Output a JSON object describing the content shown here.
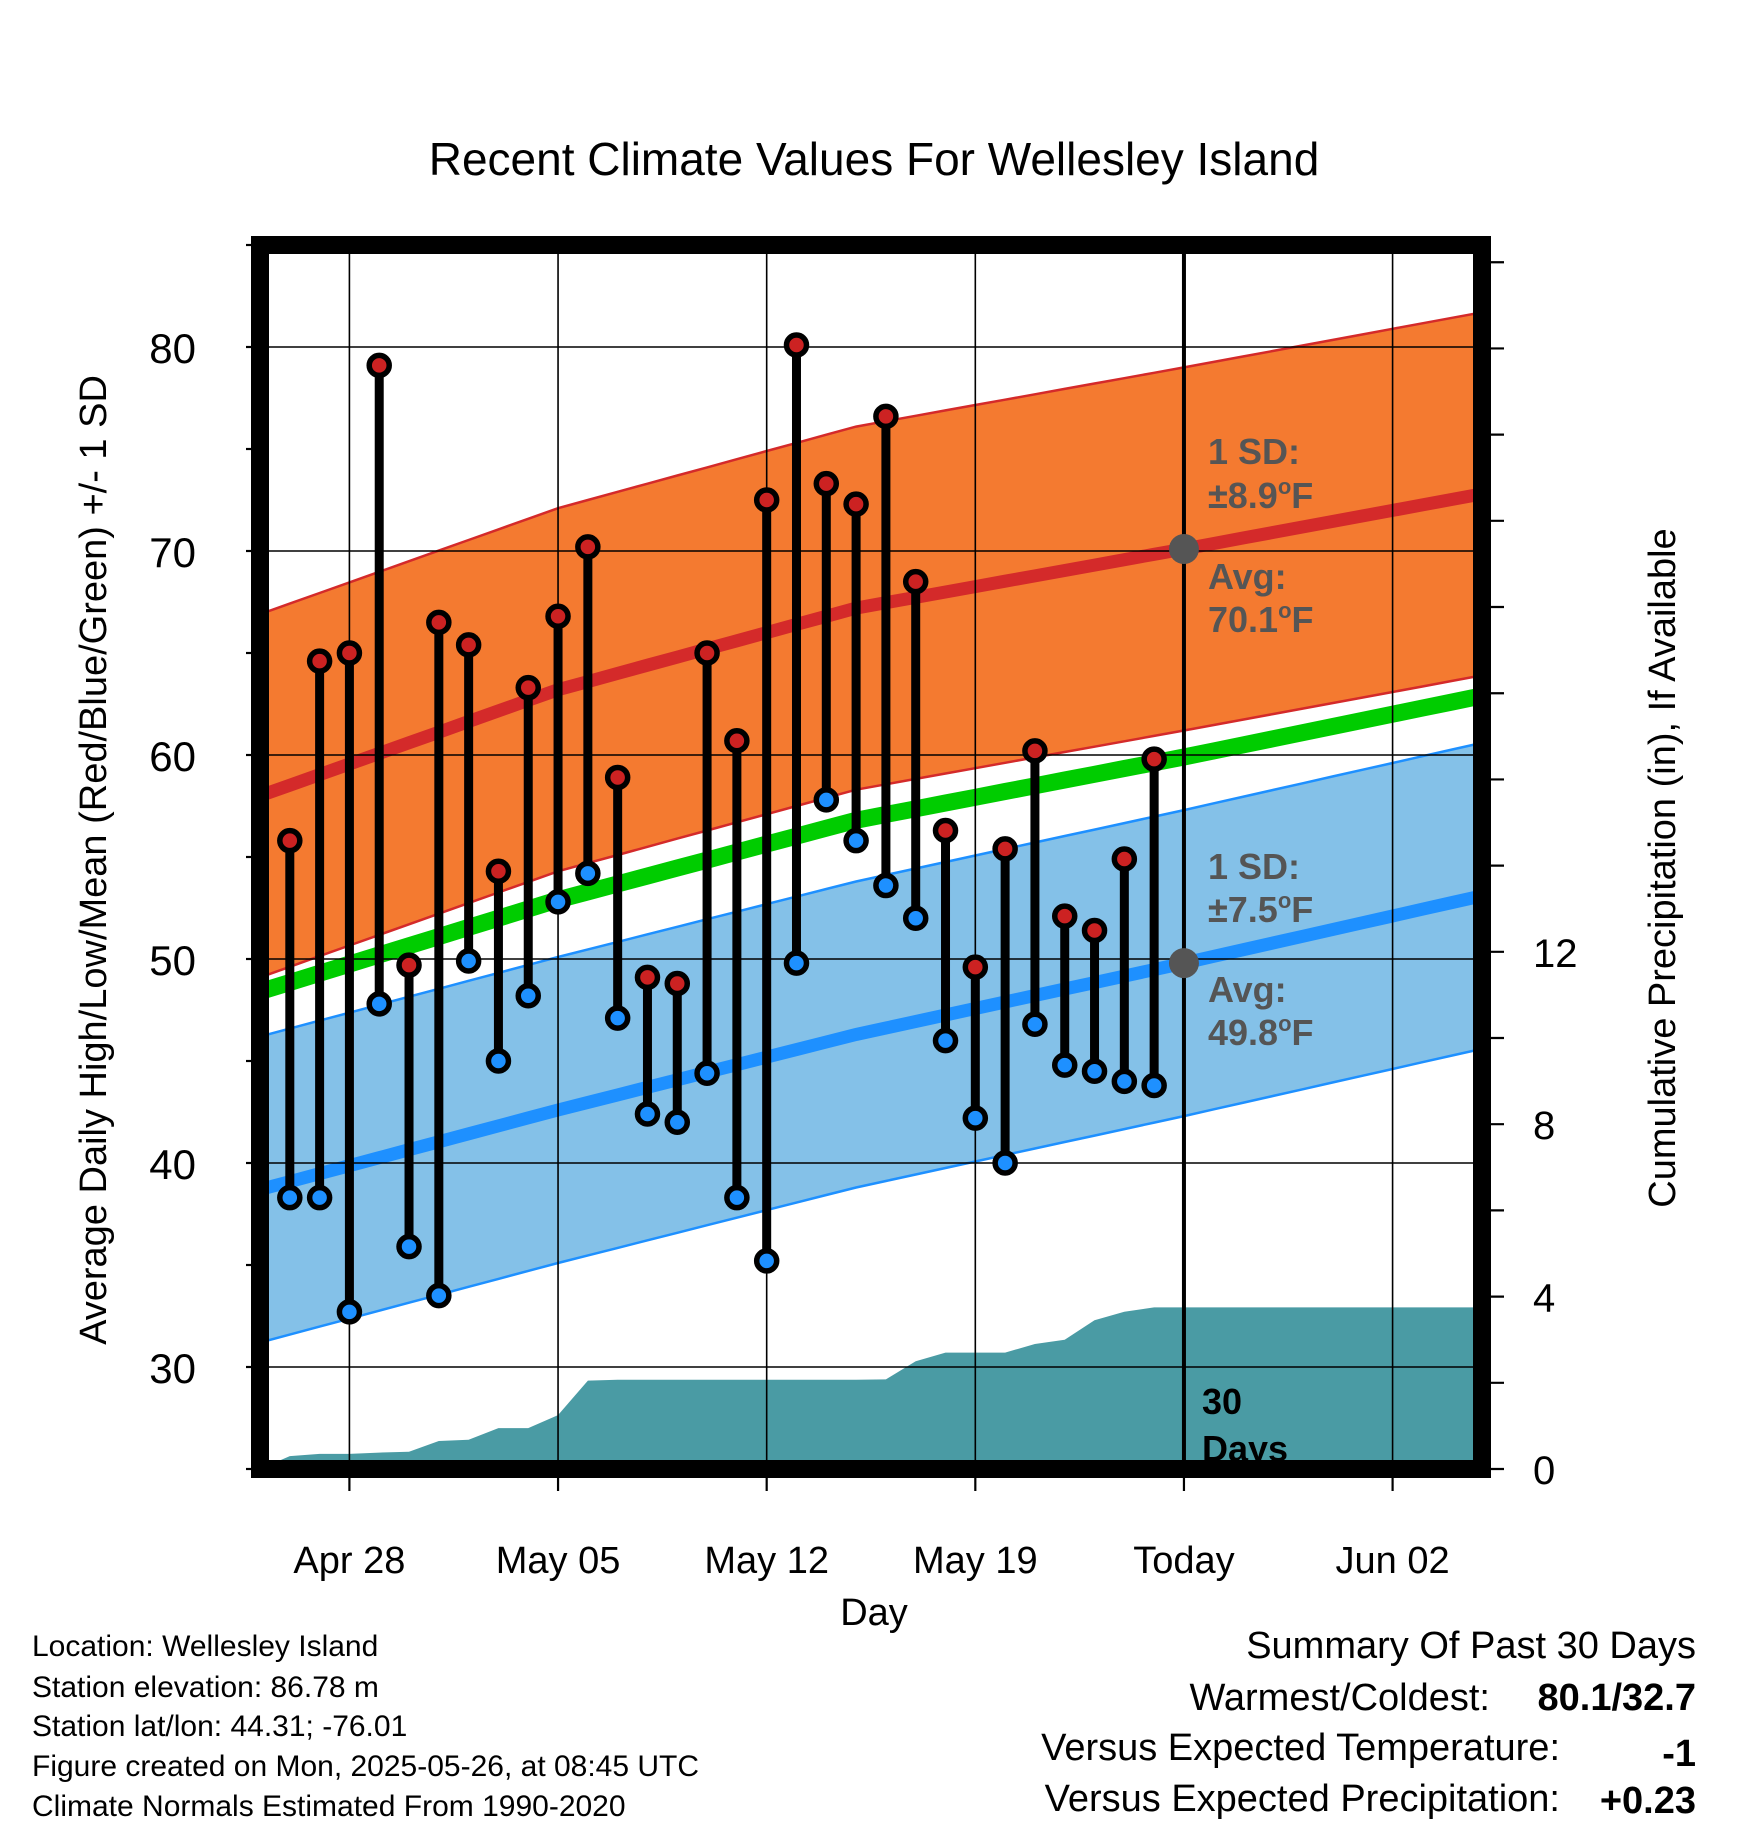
{
  "chart_data": {
    "type": "line",
    "title": "Recent Climate Values For Wellesley Island",
    "xlabel": "Day",
    "ylabel": "Average Daily High/Low/Mean (Red/Blue/Green) +/- 1 SD",
    "y2label": "Cumulative Precipitation (in), If Available",
    "ylim": [
      25,
      85
    ],
    "y2lim": [
      0,
      28.4
    ],
    "x_start_date": "2025-04-25",
    "x_end_date": "2025-06-05",
    "today_date": "2025-05-26",
    "xticks": [
      {
        "date": "2025-04-28",
        "label": "Apr 28"
      },
      {
        "date": "2025-05-05",
        "label": "May 05"
      },
      {
        "date": "2025-05-12",
        "label": "May 12"
      },
      {
        "date": "2025-05-19",
        "label": "May 19"
      },
      {
        "date": "2025-05-26",
        "label": "Today"
      },
      {
        "date": "2025-06-02",
        "label": "Jun 02"
      }
    ],
    "yticks": [
      30,
      40,
      50,
      60,
      70,
      80
    ],
    "y2ticks": [
      0,
      4,
      8,
      12
    ],
    "grid": true,
    "normals": {
      "high_avg": [
        {
          "date": "2025-04-25",
          "value": 58.0
        },
        {
          "date": "2025-05-05",
          "value": 63.2
        },
        {
          "date": "2025-05-15",
          "value": 67.2
        },
        {
          "date": "2025-05-26",
          "value": 70.1
        },
        {
          "date": "2025-06-05",
          "value": 72.8
        }
      ],
      "high_sd": 8.9,
      "low_avg": [
        {
          "date": "2025-04-25",
          "value": 38.7
        },
        {
          "date": "2025-05-05",
          "value": 42.6
        },
        {
          "date": "2025-05-15",
          "value": 46.3
        },
        {
          "date": "2025-05-26",
          "value": 49.8
        },
        {
          "date": "2025-06-05",
          "value": 53.1
        }
      ],
      "low_sd": 7.5,
      "mean_avg": [
        {
          "date": "2025-04-25",
          "value": 48.4
        },
        {
          "date": "2025-05-05",
          "value": 52.9
        },
        {
          "date": "2025-05-15",
          "value": 56.8
        },
        {
          "date": "2025-05-26",
          "value": 59.9
        },
        {
          "date": "2025-06-05",
          "value": 62.9
        }
      ]
    },
    "series": [
      {
        "name": "High",
        "color": "#cc2222",
        "values": [
          {
            "date": "2025-04-26",
            "value": 55.8
          },
          {
            "date": "2025-04-27",
            "value": 64.6
          },
          {
            "date": "2025-04-28",
            "value": 65.0
          },
          {
            "date": "2025-04-29",
            "value": 79.1
          },
          {
            "date": "2025-04-30",
            "value": 49.7
          },
          {
            "date": "2025-05-01",
            "value": 66.5
          },
          {
            "date": "2025-05-02",
            "value": 65.4
          },
          {
            "date": "2025-05-03",
            "value": 54.3
          },
          {
            "date": "2025-05-04",
            "value": 63.3
          },
          {
            "date": "2025-05-05",
            "value": 66.8
          },
          {
            "date": "2025-05-06",
            "value": 70.2
          },
          {
            "date": "2025-05-07",
            "value": 58.9
          },
          {
            "date": "2025-05-08",
            "value": 49.1
          },
          {
            "date": "2025-05-09",
            "value": 48.8
          },
          {
            "date": "2025-05-10",
            "value": 65.0
          },
          {
            "date": "2025-05-11",
            "value": 60.7
          },
          {
            "date": "2025-05-12",
            "value": 72.5
          },
          {
            "date": "2025-05-13",
            "value": 80.1
          },
          {
            "date": "2025-05-14",
            "value": 73.3
          },
          {
            "date": "2025-05-15",
            "value": 72.3
          },
          {
            "date": "2025-05-16",
            "value": 76.6
          },
          {
            "date": "2025-05-17",
            "value": 68.5
          },
          {
            "date": "2025-05-18",
            "value": 56.3
          },
          {
            "date": "2025-05-19",
            "value": 49.6
          },
          {
            "date": "2025-05-20",
            "value": 55.4
          },
          {
            "date": "2025-05-21",
            "value": 60.2
          },
          {
            "date": "2025-05-22",
            "value": 52.1
          },
          {
            "date": "2025-05-23",
            "value": 51.4
          },
          {
            "date": "2025-05-24",
            "value": 54.9
          },
          {
            "date": "2025-05-25",
            "value": 59.8
          }
        ]
      },
      {
        "name": "Low",
        "color": "#1e90ff",
        "values": [
          {
            "date": "2025-04-26",
            "value": 38.3
          },
          {
            "date": "2025-04-27",
            "value": 38.3
          },
          {
            "date": "2025-04-28",
            "value": 32.7
          },
          {
            "date": "2025-04-29",
            "value": 47.8
          },
          {
            "date": "2025-04-30",
            "value": 35.9
          },
          {
            "date": "2025-05-01",
            "value": 33.5
          },
          {
            "date": "2025-05-02",
            "value": 49.9
          },
          {
            "date": "2025-05-03",
            "value": 45.0
          },
          {
            "date": "2025-05-04",
            "value": 48.2
          },
          {
            "date": "2025-05-05",
            "value": 52.8
          },
          {
            "date": "2025-05-06",
            "value": 54.2
          },
          {
            "date": "2025-05-07",
            "value": 47.1
          },
          {
            "date": "2025-05-08",
            "value": 42.4
          },
          {
            "date": "2025-05-09",
            "value": 42.0
          },
          {
            "date": "2025-05-10",
            "value": 44.4
          },
          {
            "date": "2025-05-11",
            "value": 38.3
          },
          {
            "date": "2025-05-12",
            "value": 35.2
          },
          {
            "date": "2025-05-13",
            "value": 49.8
          },
          {
            "date": "2025-05-14",
            "value": 57.8
          },
          {
            "date": "2025-05-15",
            "value": 55.8
          },
          {
            "date": "2025-05-16",
            "value": 53.6
          },
          {
            "date": "2025-05-17",
            "value": 52.0
          },
          {
            "date": "2025-05-18",
            "value": 46.0
          },
          {
            "date": "2025-05-19",
            "value": 42.2
          },
          {
            "date": "2025-05-20",
            "value": 40.0
          },
          {
            "date": "2025-05-21",
            "value": 46.8
          },
          {
            "date": "2025-05-22",
            "value": 44.8
          },
          {
            "date": "2025-05-23",
            "value": 44.5
          },
          {
            "date": "2025-05-24",
            "value": 44.0
          },
          {
            "date": "2025-05-25",
            "value": 43.8
          }
        ]
      }
    ],
    "precipitation_cumulative": [
      {
        "date": "2025-04-25",
        "value": 0.0
      },
      {
        "date": "2025-04-26",
        "value": 0.3
      },
      {
        "date": "2025-04-27",
        "value": 0.35
      },
      {
        "date": "2025-04-28",
        "value": 0.35
      },
      {
        "date": "2025-04-29",
        "value": 0.38
      },
      {
        "date": "2025-04-30",
        "value": 0.4
      },
      {
        "date": "2025-05-01",
        "value": 0.65
      },
      {
        "date": "2025-05-02",
        "value": 0.68
      },
      {
        "date": "2025-05-03",
        "value": 0.95
      },
      {
        "date": "2025-05-04",
        "value": 0.95
      },
      {
        "date": "2025-05-05",
        "value": 1.25
      },
      {
        "date": "2025-05-06",
        "value": 2.05
      },
      {
        "date": "2025-05-07",
        "value": 2.07
      },
      {
        "date": "2025-05-15",
        "value": 2.07
      },
      {
        "date": "2025-05-16",
        "value": 2.08
      },
      {
        "date": "2025-05-17",
        "value": 2.5
      },
      {
        "date": "2025-05-18",
        "value": 2.7
      },
      {
        "date": "2025-05-20",
        "value": 2.7
      },
      {
        "date": "2025-05-21",
        "value": 2.9
      },
      {
        "date": "2025-05-22",
        "value": 3.0
      },
      {
        "date": "2025-05-23",
        "value": 3.45
      },
      {
        "date": "2025-05-24",
        "value": 3.65
      },
      {
        "date": "2025-05-25",
        "value": 3.75
      },
      {
        "date": "2025-05-26",
        "value": 3.75
      },
      {
        "date": "2025-06-05",
        "value": 3.75
      }
    ],
    "annotations": {
      "high_sd_line1": "1 SD:",
      "high_sd_line2": "±8.9",
      "high_avg_line1": "Avg:",
      "high_avg_line2": "70.1",
      "low_sd_line1": "1 SD:",
      "low_sd_line2": "±7.5",
      "low_avg_line1": "Avg:",
      "low_avg_line2": "49.8",
      "degree_mark": "o",
      "unit_letter": "F",
      "days_count": "30",
      "days_word": "Days"
    },
    "colors": {
      "high_band": "#f47a30",
      "high_line": "#d42a2a",
      "low_band": "#84c1e8",
      "low_line": "#1e90ff",
      "mean_line": "#00cc00",
      "precip": "#4a9ba4"
    }
  },
  "footer": {
    "info_lines": [
      "Location: Wellesley Island",
      "Station elevation: 86.78 m",
      "Station lat/lon: 44.31; -76.01",
      "Figure created on Mon, 2025-05-26, at 08:45 UTC",
      "Climate Normals Estimated From 1990-2020"
    ],
    "summary_title": "Summary Of Past 30 Days",
    "warmest_label": "Warmest/Coldest:",
    "warmest_value": "80.1/32.7",
    "temp_label": "Versus Expected Temperature:",
    "temp_value": "-1",
    "temp_color": "#1e90ff",
    "precip_label": "Versus Expected Precipitation:",
    "precip_value": "+0.23",
    "precip_color": "#1fbf1f"
  }
}
